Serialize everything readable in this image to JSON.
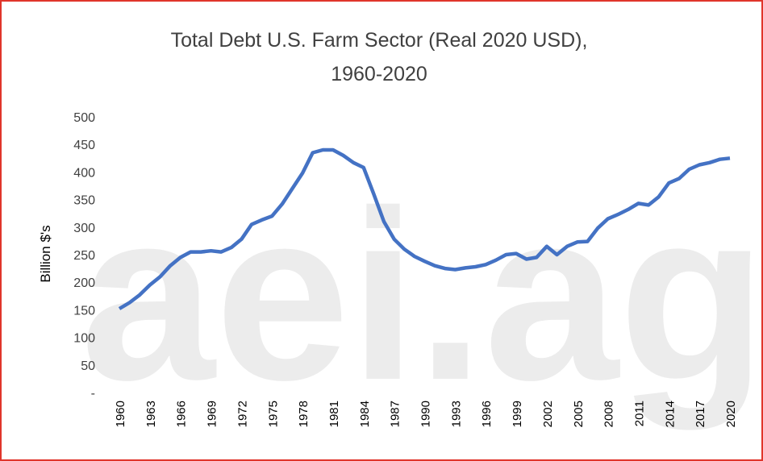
{
  "chart_data": {
    "type": "line",
    "title": [
      "Total Debt U.S. Farm Sector (Real 2020 USD),",
      "1960-2020"
    ],
    "y_label": "Billion $'s",
    "watermark": "aei.ag",
    "x": [
      1960,
      1961,
      1962,
      1963,
      1964,
      1965,
      1966,
      1967,
      1968,
      1969,
      1970,
      1971,
      1972,
      1973,
      1974,
      1975,
      1976,
      1977,
      1978,
      1979,
      1980,
      1981,
      1982,
      1983,
      1984,
      1985,
      1986,
      1987,
      1988,
      1989,
      1990,
      1991,
      1992,
      1993,
      1994,
      1995,
      1996,
      1997,
      1998,
      1999,
      2000,
      2001,
      2002,
      2003,
      2004,
      2005,
      2006,
      2007,
      2008,
      2009,
      2010,
      2011,
      2012,
      2013,
      2014,
      2015,
      2016,
      2017,
      2018,
      2019,
      2020
    ],
    "series": [
      {
        "name": "Total Debt",
        "color": "#4472c4",
        "values": [
          152,
          163,
          177,
          195,
          210,
          230,
          245,
          255,
          255,
          257,
          255,
          263,
          278,
          305,
          313,
          320,
          342,
          370,
          398,
          435,
          440,
          440,
          430,
          417,
          408,
          360,
          310,
          278,
          260,
          247,
          238,
          230,
          225,
          223,
          226,
          228,
          232,
          240,
          250,
          252,
          242,
          245,
          265,
          250,
          265,
          273,
          274,
          298,
          315,
          323,
          332,
          343,
          340,
          355,
          380,
          388,
          405,
          413,
          417,
          423,
          425
        ]
      }
    ],
    "xlim": [
      1960,
      2020
    ],
    "xticks": [
      1960,
      1963,
      1966,
      1969,
      1972,
      1975,
      1978,
      1981,
      1984,
      1987,
      1990,
      1993,
      1996,
      1999,
      2002,
      2005,
      2008,
      2011,
      2014,
      2017,
      2020
    ],
    "ylim": [
      0,
      500
    ],
    "yticks": [
      {
        "value": 0,
        "label": "-"
      },
      50,
      100,
      150,
      200,
      250,
      300,
      350,
      400,
      450,
      500
    ],
    "grid": false
  }
}
